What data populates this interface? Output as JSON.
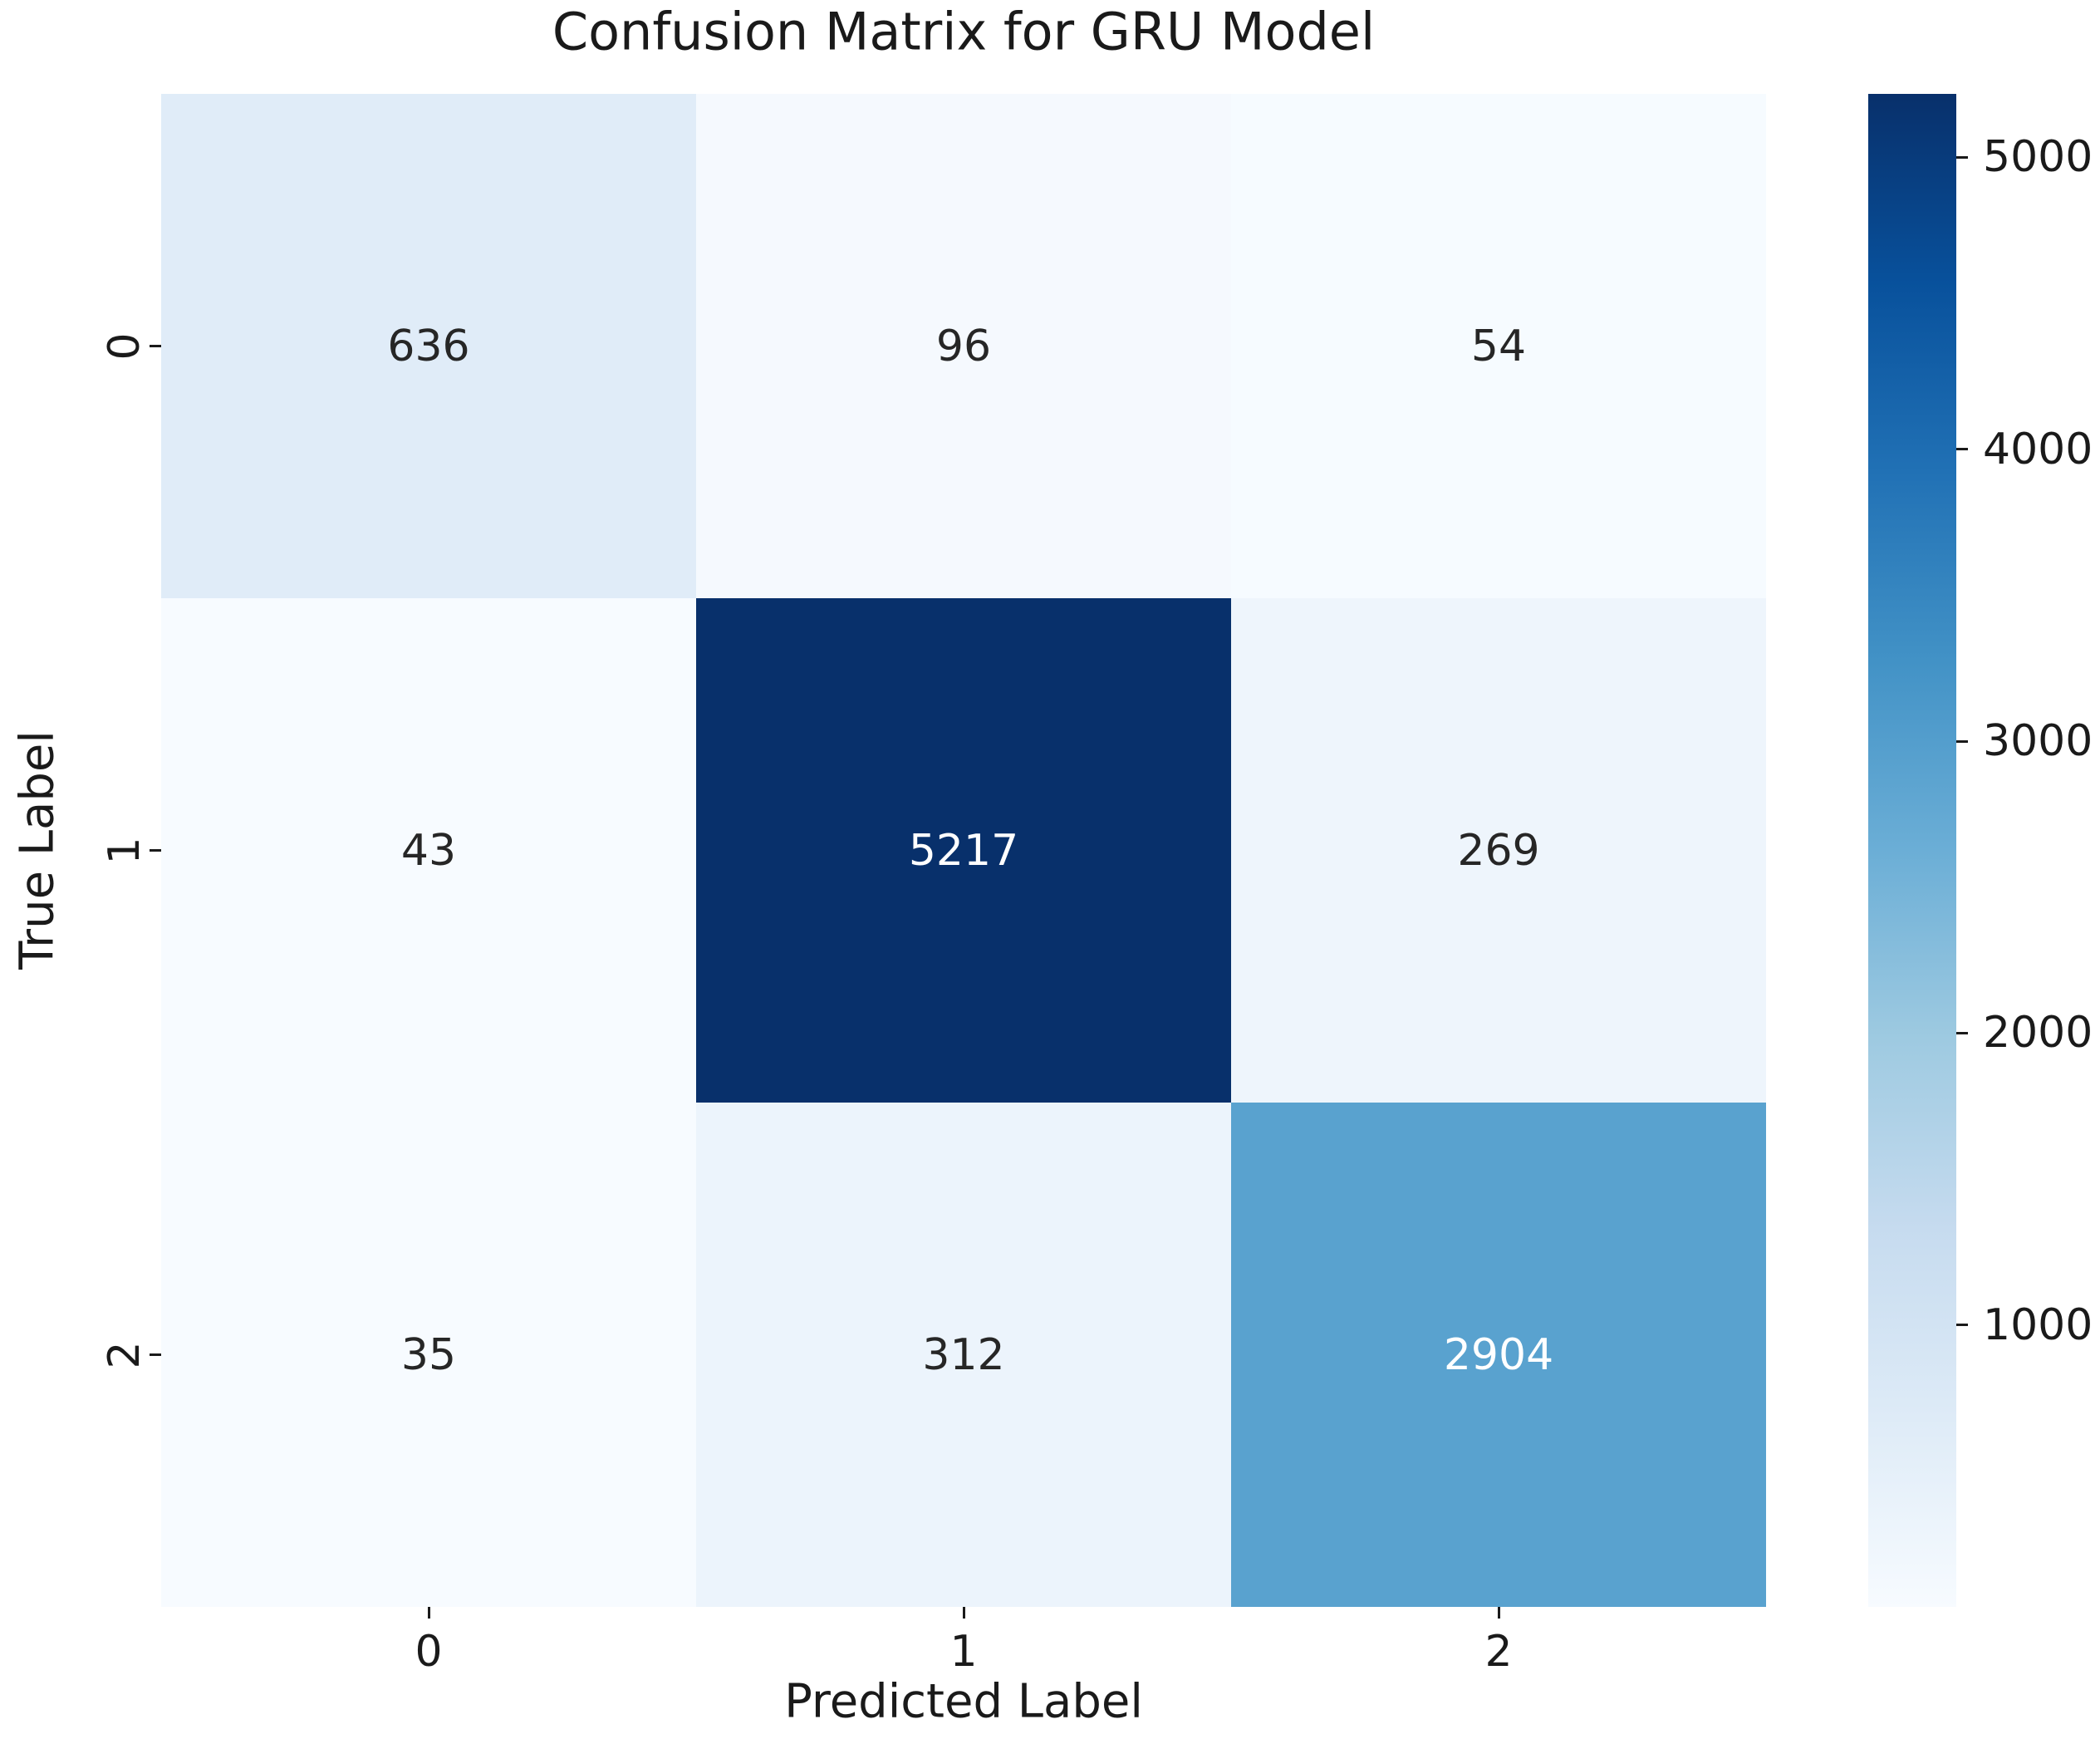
{
  "chart_data": {
    "type": "heatmap",
    "title": "Confusion Matrix for GRU Model",
    "xlabel": "Predicted Label",
    "ylabel": "True Label",
    "x_tick_labels": [
      "0",
      "1",
      "2"
    ],
    "y_tick_labels": [
      "0",
      "1",
      "2"
    ],
    "matrix": [
      [
        636,
        96,
        54
      ],
      [
        43,
        5217,
        269
      ],
      [
        35,
        312,
        2904
      ]
    ],
    "colorbar_range": [
      35,
      5217
    ],
    "colorbar_ticks": [
      1000,
      2000,
      3000,
      4000,
      5000
    ],
    "colormap": "Blues",
    "colormap_stops": [
      "#f7fbff",
      "#deebf7",
      "#c6dbef",
      "#9ecae1",
      "#6baed6",
      "#4292c6",
      "#2171b5",
      "#08519c",
      "#08306b"
    ],
    "legend_position": "right-colorbar",
    "grid": false,
    "annotation_dark_text_color": "#262626",
    "annotation_light_text_color": "#ffffff"
  }
}
